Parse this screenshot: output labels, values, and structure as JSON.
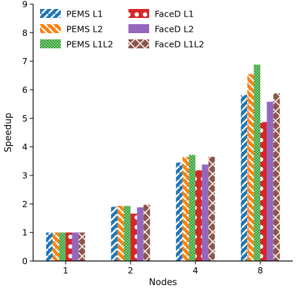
{
  "chart_data": {
    "type": "bar",
    "categories": [
      "1",
      "2",
      "4",
      "8"
    ],
    "xlabel": "Nodes",
    "ylabel": "Speedup",
    "ylim": [
      0,
      9
    ],
    "yticks": [
      0,
      1,
      2,
      3,
      4,
      5,
      6,
      7,
      8,
      9
    ],
    "grid": false,
    "legend_position": "top-left",
    "series": [
      {
        "name": "PEMS L1",
        "color": "#1f77b4",
        "pattern": "diagonal-white-stripes",
        "values": [
          1.0,
          1.9,
          3.45,
          5.82
        ]
      },
      {
        "name": "PEMS L2",
        "color": "#ff7f0e",
        "pattern": "backslash-white-stripes",
        "values": [
          1.0,
          1.93,
          3.65,
          6.55
        ]
      },
      {
        "name": "PEMS L1L2",
        "color": "#2ca02c",
        "pattern": "dots-white",
        "values": [
          1.0,
          1.93,
          3.72,
          6.88
        ]
      },
      {
        "name": "FaceD L1",
        "color": "#d62728",
        "pattern": "white-circles",
        "values": [
          1.0,
          1.66,
          3.18,
          4.87
        ]
      },
      {
        "name": "FaceD L2",
        "color": "#9467bd",
        "pattern": "solid",
        "values": [
          1.0,
          1.88,
          3.38,
          5.58
        ]
      },
      {
        "name": "FaceD L1L2",
        "color": "#8c564b",
        "pattern": "x-white",
        "values": [
          1.0,
          1.97,
          3.65,
          5.88
        ]
      }
    ]
  }
}
